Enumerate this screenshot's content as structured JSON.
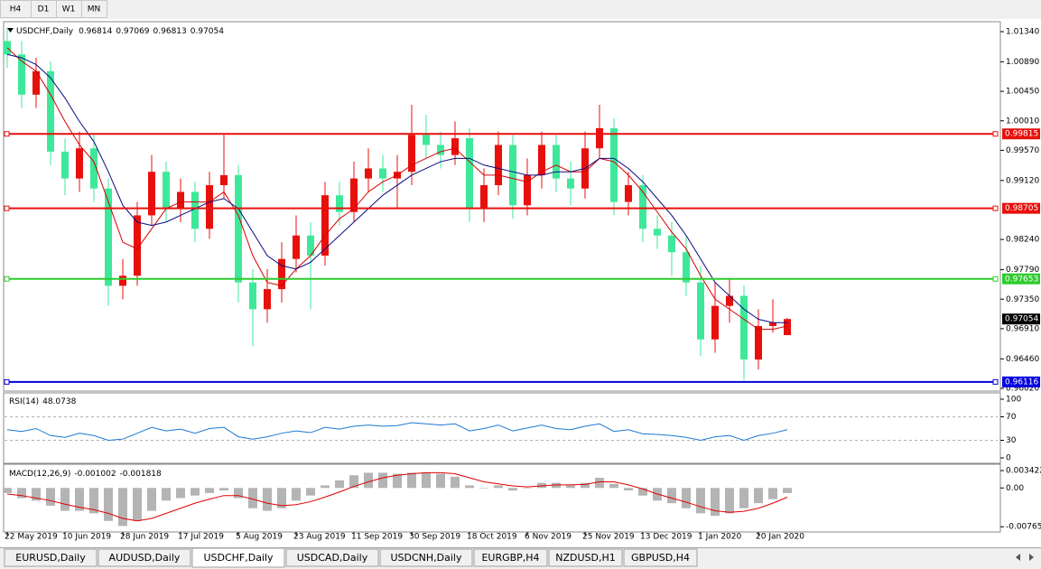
{
  "timeframes": [
    "H4",
    "D1",
    "W1",
    "MN"
  ],
  "chart_data": [
    {
      "type": "candlestick",
      "title": "USDCHF,Daily",
      "categories": [
        "22 May 2019",
        null,
        null,
        null,
        "10 Jun 2019",
        null,
        null,
        null,
        "28 Jun 2019",
        null,
        null,
        null,
        "17 Jul 2019",
        null,
        null,
        null,
        "5 Aug 2019",
        null,
        null,
        null,
        "23 Aug 2019",
        null,
        null,
        null,
        "11 Sep 2019",
        null,
        null,
        null,
        "30 Sep 2019",
        null,
        null,
        null,
        "18 Oct 2019",
        null,
        null,
        null,
        "6 Nov 2019",
        null,
        null,
        null,
        "25 Nov 2019",
        null,
        null,
        null,
        "13 Dec 2019",
        null,
        null,
        null,
        "1 Jan 2020",
        null,
        null,
        null,
        "20 Jan 2020",
        null,
        null
      ],
      "open": [
        1.012,
        1.01,
        1.004,
        1.0075,
        0.9955,
        0.9915,
        0.996,
        0.99,
        0.9755,
        0.977,
        0.986,
        0.9925,
        0.987,
        0.9895,
        0.984,
        0.9905,
        0.992,
        0.976,
        0.972,
        0.975,
        0.9795,
        0.983,
        0.98,
        0.989,
        0.9865,
        0.9915,
        0.993,
        0.9915,
        0.9925,
        0.998,
        0.9965,
        0.995,
        0.9975,
        0.987,
        0.9905,
        0.9965,
        0.9875,
        0.992,
        0.9965,
        0.9915,
        0.99,
        0.996,
        0.999,
        0.988,
        0.9905,
        0.984,
        0.983,
        0.9805,
        0.976,
        0.9675,
        0.9725,
        0.974,
        0.9645,
        0.9695,
        0.96814
      ],
      "high": [
        1.014,
        1.012,
        1.0095,
        1.009,
        0.9975,
        0.9985,
        0.998,
        0.9915,
        0.9795,
        0.988,
        0.995,
        0.994,
        0.9915,
        0.991,
        0.9925,
        0.998,
        0.9935,
        0.978,
        0.978,
        0.982,
        0.986,
        0.985,
        0.991,
        0.991,
        0.994,
        0.996,
        0.995,
        0.995,
        1.0025,
        1.001,
        0.9985,
        1.0,
        0.999,
        0.993,
        0.9985,
        0.998,
        0.9945,
        0.9985,
        0.998,
        0.994,
        0.9985,
        1.0025,
        1.0005,
        0.9925,
        0.992,
        0.986,
        0.985,
        0.983,
        0.9785,
        0.976,
        0.9765,
        0.9755,
        0.972,
        0.9735,
        0.97069
      ],
      "low": [
        1.008,
        1.002,
        1.002,
        0.9935,
        0.989,
        0.9895,
        0.988,
        0.9725,
        0.9735,
        0.9755,
        0.9845,
        0.985,
        0.985,
        0.982,
        0.9825,
        0.9885,
        0.973,
        0.9665,
        0.97,
        0.973,
        0.9775,
        0.972,
        0.9785,
        0.9845,
        0.985,
        0.9895,
        0.9895,
        0.987,
        0.9905,
        0.9945,
        0.993,
        0.9935,
        0.985,
        0.985,
        0.989,
        0.9855,
        0.986,
        0.99,
        0.9895,
        0.9875,
        0.9885,
        0.9945,
        0.986,
        0.986,
        0.982,
        0.981,
        0.977,
        0.974,
        0.965,
        0.9655,
        0.97,
        0.9615,
        0.963,
        0.9685,
        0.96813
      ],
      "close": [
        1.01,
        1.004,
        1.0075,
        0.9955,
        0.9915,
        0.996,
        0.99,
        0.9755,
        0.977,
        0.986,
        0.9925,
        0.987,
        0.9895,
        0.984,
        0.9905,
        0.992,
        0.976,
        0.972,
        0.975,
        0.9795,
        0.983,
        0.98,
        0.989,
        0.9865,
        0.9915,
        0.993,
        0.9915,
        0.9925,
        0.998,
        0.9965,
        0.995,
        0.9975,
        0.987,
        0.9905,
        0.9965,
        0.9875,
        0.992,
        0.9965,
        0.9915,
        0.99,
        0.996,
        0.999,
        0.988,
        0.9905,
        0.984,
        0.983,
        0.9805,
        0.976,
        0.9675,
        0.9725,
        0.974,
        0.9645,
        0.9695,
        0.97,
        0.97054
      ],
      "up_color": "#e8100c",
      "down_color": "#3ee89a",
      "series": [
        {
          "color": "#d40000",
          "values": [
            1.011,
            1.009,
            1.0075,
            1.004,
            1.0,
            0.9965,
            0.994,
            0.988,
            0.982,
            0.981,
            0.984,
            0.987,
            0.988,
            0.988,
            0.988,
            0.9895,
            0.986,
            0.98,
            0.976,
            0.9755,
            0.978,
            0.98,
            0.983,
            0.9855,
            0.987,
            0.9895,
            0.991,
            0.992,
            0.9935,
            0.9945,
            0.9955,
            0.996,
            0.994,
            0.992,
            0.992,
            0.9915,
            0.991,
            0.9925,
            0.9935,
            0.9925,
            0.9925,
            0.9945,
            0.994,
            0.992,
            0.9895,
            0.9865,
            0.9835,
            0.981,
            0.977,
            0.9735,
            0.972,
            0.9705,
            0.969,
            0.969,
            0.9695
          ]
        },
        {
          "color": "#0a0a80",
          "values": [
            1.01,
            1.0095,
            1.0085,
            1.0065,
            1.0035,
            1.0,
            0.997,
            0.9925,
            0.9875,
            0.985,
            0.9845,
            0.985,
            0.986,
            0.987,
            0.988,
            0.9885,
            0.987,
            0.9835,
            0.98,
            0.9785,
            0.978,
            0.979,
            0.981,
            0.983,
            0.985,
            0.987,
            0.989,
            0.9905,
            0.992,
            0.993,
            0.994,
            0.9945,
            0.9945,
            0.9935,
            0.993,
            0.9925,
            0.992,
            0.992,
            0.9925,
            0.9925,
            0.993,
            0.9945,
            0.9945,
            0.993,
            0.991,
            0.9885,
            0.986,
            0.983,
            0.9795,
            0.976,
            0.974,
            0.972,
            0.9705,
            0.97,
            0.97
          ]
        }
      ],
      "levels": [
        {
          "value": 0.99815,
          "color": "#e8100c"
        },
        {
          "value": 0.98705,
          "color": "#e8100c"
        },
        {
          "value": 0.97653,
          "color": "#2ecc2e"
        },
        {
          "value": 0.96116,
          "color": "#0000e0"
        }
      ],
      "ylim": [
        0.95993,
        1.01475
      ],
      "yticks": [
        {
          "value": 1.0134,
          "label": "1.01340"
        },
        {
          "value": 1.0089,
          "label": "1.00890"
        },
        {
          "value": 1.0045,
          "label": "1.00450"
        },
        {
          "value": 1.0001,
          "label": "1.00010"
        },
        {
          "value": 0.9957,
          "label": "0.99570"
        },
        {
          "value": 0.9912,
          "label": "0.99120"
        },
        {
          "value": 0.9824,
          "label": "0.98240"
        },
        {
          "value": 0.9779,
          "label": "0.97790"
        },
        {
          "value": 0.9735,
          "label": "0.97350"
        },
        {
          "value": 0.9691,
          "label": "0.96910"
        },
        {
          "value": 0.9646,
          "label": "0.96460"
        },
        {
          "value": 0.9602,
          "label": "0.96020"
        }
      ]
    },
    {
      "type": "line",
      "title": "RSI(14)",
      "color": "#1e78d2",
      "values": [
        48,
        45,
        50,
        38,
        35,
        42,
        38,
        30,
        32,
        42,
        52,
        46,
        49,
        42,
        50,
        52,
        36,
        32,
        36,
        42,
        46,
        43,
        52,
        49,
        54,
        56,
        54,
        55,
        60,
        58,
        56,
        58,
        46,
        50,
        56,
        46,
        51,
        56,
        50,
        48,
        54,
        58,
        45,
        48,
        41,
        40,
        38,
        35,
        30,
        36,
        38,
        30,
        38,
        42,
        48.0738
      ],
      "levels": [
        70,
        30
      ],
      "ylim": [
        -7.7,
        109.2
      ],
      "yticks": [
        100,
        70,
        30,
        0
      ]
    },
    {
      "type": "bar",
      "title": "MACD(12,26,9)",
      "color": "#b4b4b4",
      "values": [
        -0.001,
        -0.002,
        -0.0025,
        -0.0035,
        -0.0045,
        -0.0045,
        -0.005,
        -0.0065,
        -0.0075,
        -0.0065,
        -0.0045,
        -0.0025,
        -0.002,
        -0.0015,
        -0.001,
        -0.0005,
        -0.002,
        -0.004,
        -0.0045,
        -0.004,
        -0.0025,
        -0.0015,
        0.0005,
        0.0015,
        0.0025,
        0.003,
        0.003,
        0.0028,
        0.003,
        0.003,
        0.0028,
        0.0022,
        0.0005,
        0.0,
        0.0005,
        -0.0005,
        0.0,
        0.001,
        0.001,
        0.0005,
        0.001,
        0.002,
        0.0008,
        -0.0005,
        -0.0015,
        -0.0025,
        -0.003,
        -0.004,
        -0.005,
        -0.0055,
        -0.005,
        -0.004,
        -0.003,
        -0.0022,
        -0.001002
      ],
      "series": [
        {
          "color": "#e00000",
          "values": [
            -0.0012,
            -0.0015,
            -0.002,
            -0.0025,
            -0.0032,
            -0.0038,
            -0.0043,
            -0.005,
            -0.006,
            -0.0065,
            -0.006,
            -0.005,
            -0.004,
            -0.003,
            -0.0022,
            -0.0015,
            -0.0015,
            -0.0022,
            -0.003,
            -0.0035,
            -0.0033,
            -0.0027,
            -0.0018,
            -0.0008,
            0.0003,
            0.0012,
            0.002,
            0.0025,
            0.0028,
            0.003,
            0.003,
            0.0028,
            0.002,
            0.0012,
            0.0008,
            0.0004,
            0.0002,
            0.0004,
            0.0006,
            0.0006,
            0.0007,
            0.0012,
            0.0012,
            0.0006,
            -0.0002,
            -0.0012,
            -0.002,
            -0.0028,
            -0.0037,
            -0.0045,
            -0.0048,
            -0.0046,
            -0.004,
            -0.003,
            -0.001818
          ]
        }
      ],
      "ylim": [
        -0.0085,
        0.0045
      ],
      "yticks": [
        0.003422,
        {
          "value": 0,
          "label": "0.00"
        },
        -0.007651
      ]
    }
  ],
  "symbol_tabs": [
    {
      "label": "EURUSD,Daily",
      "active": false
    },
    {
      "label": "AUDUSD,Daily",
      "active": false
    },
    {
      "label": "USDCHF,Daily",
      "active": true
    },
    {
      "label": "USDCAD,Daily",
      "active": false
    },
    {
      "label": "USDCNH,Daily",
      "active": false
    },
    {
      "label": "EURGBP,H4",
      "active": false
    },
    {
      "label": "NZDUSD,H1",
      "active": false
    },
    {
      "label": "GBPUSD,H4",
      "active": false
    }
  ]
}
